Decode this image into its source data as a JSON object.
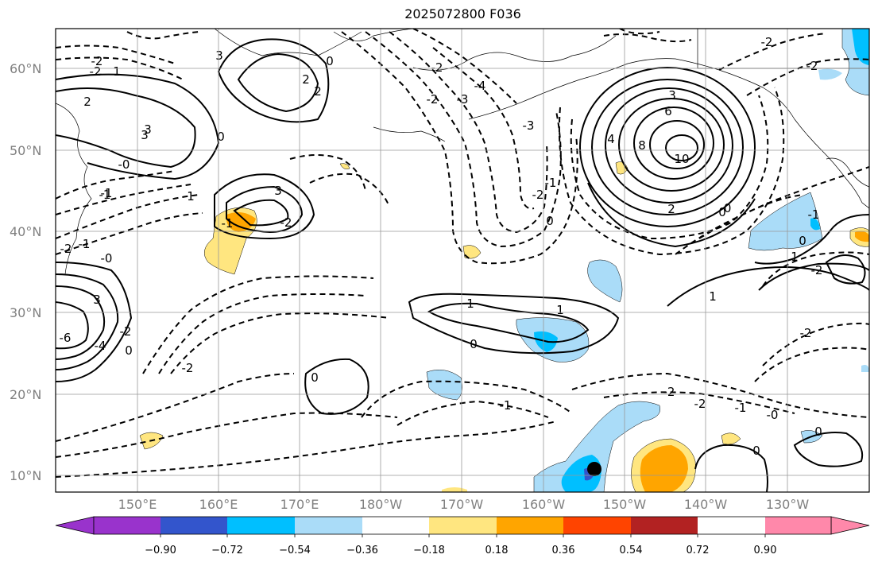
{
  "title": "2025072800 F036",
  "lat_labels": [
    "60°N",
    "50°N",
    "40°N",
    "30°N",
    "20°N",
    "10°N"
  ],
  "lon_labels": [
    "150°E",
    "160°E",
    "170°E",
    "180°W",
    "170°W",
    "160°W",
    "150°W",
    "140°W",
    "130°W"
  ],
  "colorbar": {
    "ticks": [
      "−0.90",
      "−0.72",
      "−0.54",
      "−0.36",
      "−0.18",
      "0.18",
      "0.36",
      "0.54",
      "0.72",
      "0.90"
    ],
    "colors": [
      "#9933cc",
      "#000088",
      "#3355cc",
      "#00bfff",
      "#aadcf8",
      "#ffffff",
      "#ffe680",
      "#ffa500",
      "#ff4400",
      "#b22222",
      "#ff88aa"
    ]
  },
  "contour_labels": [
    "-2",
    "0",
    "1",
    "2",
    "3",
    "0",
    "2",
    "3",
    "-2",
    "-3",
    "-4",
    "-3",
    "-2",
    "3",
    "6",
    "8",
    "10",
    "4",
    "2",
    "0",
    "-1",
    "-2",
    "0",
    "-0",
    "-1",
    "-2",
    "-1",
    "1",
    "1",
    "1",
    "0",
    "-2",
    "-1",
    "3",
    "-2",
    "-2",
    "0",
    "0",
    "-1",
    "-2",
    "-2",
    "-1",
    "-0",
    "0",
    "0",
    "-2",
    "-6",
    "-4",
    "0",
    "-2",
    "1",
    "-2",
    "3",
    "2",
    "1",
    "-1",
    "-0",
    "-0",
    "-2",
    "3",
    "-1",
    "-2"
  ]
}
